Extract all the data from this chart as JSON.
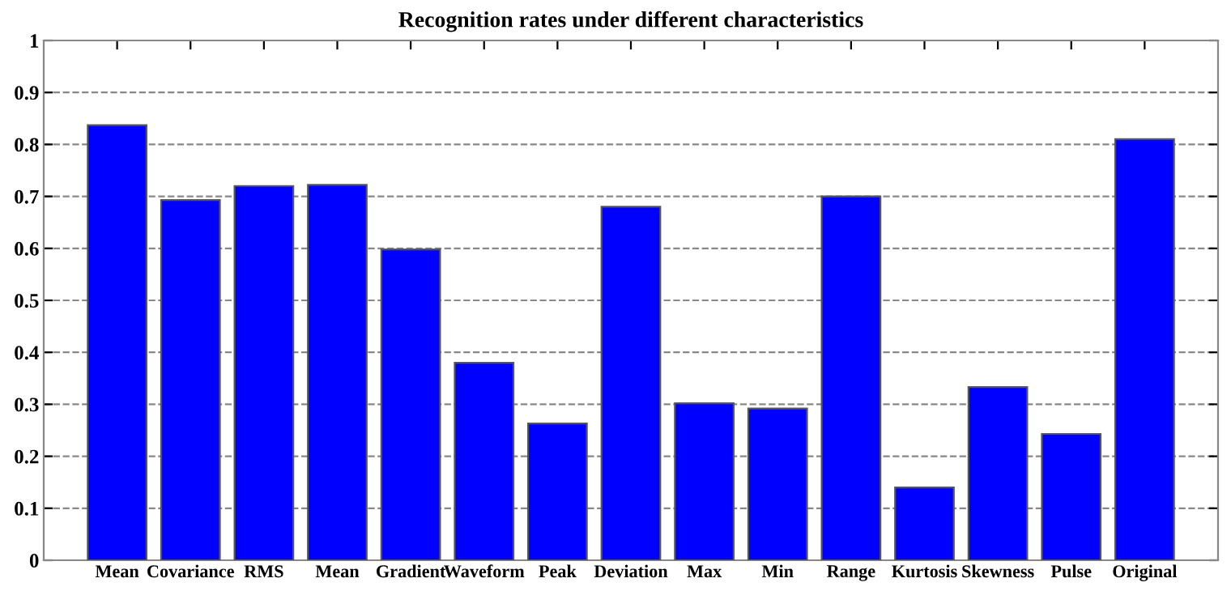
{
  "chart_data": {
    "type": "bar",
    "title": "Recognition rates under different characteristics",
    "categories": [
      "Mean",
      "Covariance",
      "RMS",
      "Mean",
      "Gradient",
      "Waveform",
      "Peak",
      "Deviation",
      "Max",
      "Min",
      "Range",
      "Kurtosis",
      "Skewness",
      "Pulse",
      "Original"
    ],
    "values": [
      0.837,
      0.693,
      0.72,
      0.722,
      0.598,
      0.38,
      0.263,
      0.68,
      0.302,
      0.292,
      0.7,
      0.14,
      0.333,
      0.243,
      0.81
    ],
    "color": "#0000ff",
    "ylim": [
      0,
      1
    ],
    "yticks": [
      0,
      0.1,
      0.2,
      0.3,
      0.4,
      0.5,
      0.6,
      0.7,
      0.8,
      0.9,
      1
    ],
    "grid": "y"
  }
}
